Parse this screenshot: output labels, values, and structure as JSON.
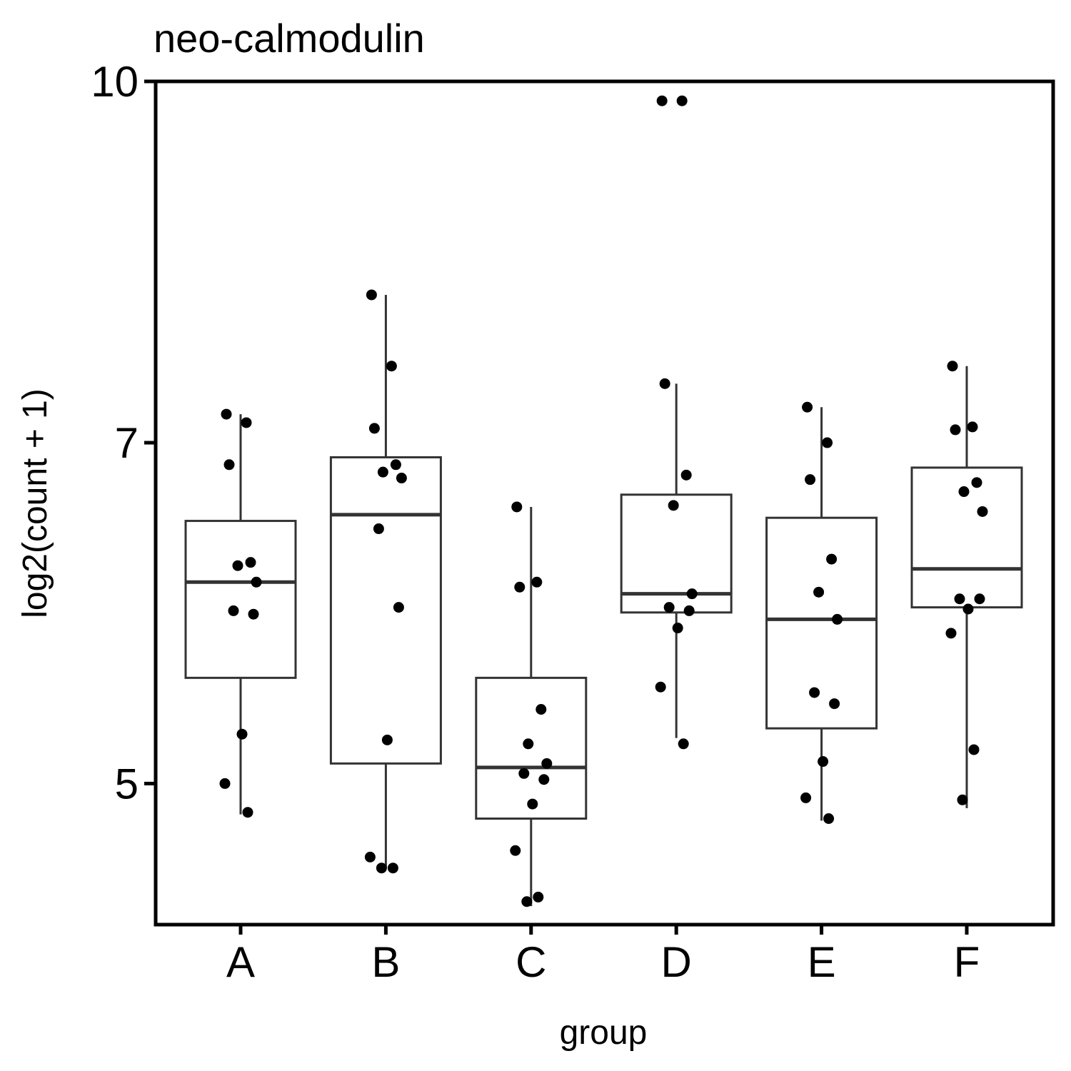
{
  "chart_data": {
    "type": "box",
    "title": "neo-calmodulin",
    "xlabel": "group",
    "ylabel": "log2(count + 1)",
    "y_scale": "log",
    "ylim": [
      4.35,
      10
    ],
    "yticks": [
      5,
      7,
      10
    ],
    "ytick_labels": [
      "5",
      "7",
      "10"
    ],
    "categories": [
      "A",
      "B",
      "C",
      "D",
      "E",
      "F"
    ],
    "boxes": [
      {
        "group": "A",
        "whisker_low": 4.85,
        "q1": 5.55,
        "median": 6.1,
        "q3": 6.48,
        "whisker_high": 7.2
      },
      {
        "group": "B",
        "whisker_low": 4.6,
        "q1": 5.1,
        "median": 6.52,
        "q3": 6.9,
        "whisker_high": 8.1
      },
      {
        "group": "C",
        "whisker_low": 4.43,
        "q1": 4.83,
        "median": 5.08,
        "q3": 5.55,
        "whisker_high": 6.57
      },
      {
        "group": "D",
        "whisker_low": 5.23,
        "q1": 5.92,
        "median": 6.03,
        "q3": 6.65,
        "whisker_high": 7.42
      },
      {
        "group": "E",
        "whisker_low": 4.82,
        "q1": 5.28,
        "median": 5.88,
        "q3": 6.5,
        "whisker_high": 7.25
      },
      {
        "group": "F",
        "whisker_low": 4.88,
        "q1": 5.95,
        "median": 6.18,
        "q3": 6.83,
        "whisker_high": 7.55
      }
    ],
    "points": [
      {
        "group": "A",
        "values": [
          7.2,
          7.14,
          6.85,
          6.22,
          6.2,
          6.1,
          5.93,
          5.91,
          5.25,
          5.0,
          4.86
        ]
      },
      {
        "group": "B",
        "values": [
          8.1,
          7.55,
          7.1,
          6.85,
          6.8,
          6.76,
          6.43,
          5.95,
          5.22,
          4.65,
          4.6,
          4.6
        ]
      },
      {
        "group": "C",
        "values": [
          6.57,
          6.1,
          6.07,
          5.38,
          5.2,
          5.1,
          5.05,
          5.02,
          4.9,
          4.68,
          4.47,
          4.45
        ]
      },
      {
        "group": "D",
        "values": [
          9.81,
          9.81,
          7.42,
          6.78,
          6.58,
          6.03,
          5.95,
          5.93,
          5.83,
          5.5,
          5.2
        ]
      },
      {
        "group": "E",
        "values": [
          7.25,
          7.0,
          6.75,
          6.24,
          6.04,
          5.88,
          5.47,
          5.41,
          5.11,
          4.93,
          4.83
        ]
      },
      {
        "group": "F",
        "values": [
          7.55,
          7.11,
          7.09,
          6.73,
          6.67,
          6.54,
          6.0,
          6.0,
          5.94,
          5.8,
          5.17,
          4.92
        ]
      }
    ],
    "grid": false,
    "legend": "none"
  }
}
